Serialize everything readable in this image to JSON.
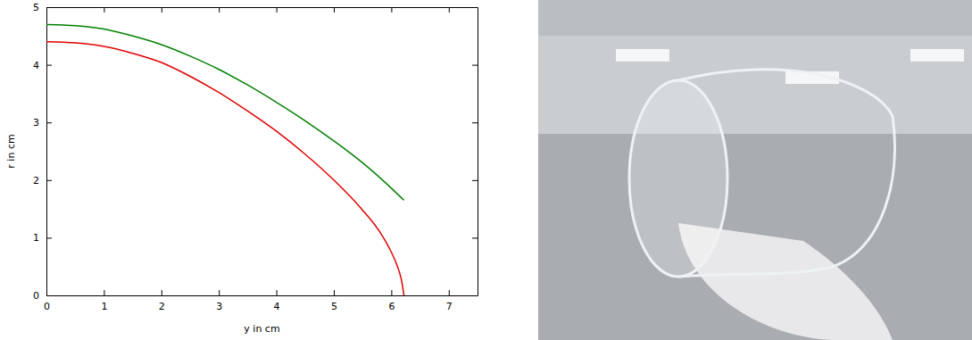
{
  "chart_data": {
    "type": "line",
    "x_label": "y in cm",
    "y_label": "r in cm",
    "xlim": [
      0,
      7.5
    ],
    "xticks": [
      0,
      1,
      2,
      3,
      4,
      5,
      6,
      7
    ],
    "ylim": [
      0,
      5
    ],
    "yticks": [
      0,
      1,
      2,
      3,
      4,
      5
    ],
    "grid": false,
    "series": [
      {
        "color": "#008000",
        "x": [
          0,
          0.5,
          1,
          1.5,
          2,
          2.5,
          3,
          3.5,
          4,
          4.5,
          5,
          5.5,
          6,
          6.22
        ],
        "values": [
          4.7,
          4.68,
          4.62,
          4.5,
          4.35,
          4.15,
          3.92,
          3.65,
          3.35,
          3.03,
          2.68,
          2.3,
          1.86,
          1.65
        ]
      },
      {
        "color": "#e00000",
        "x": [
          0,
          0.5,
          1,
          1.5,
          2,
          2.5,
          3,
          3.5,
          4,
          4.5,
          5,
          5.5,
          5.8,
          6.0,
          6.1,
          6.18,
          6.22
        ],
        "values": [
          4.4,
          4.38,
          4.32,
          4.2,
          4.04,
          3.8,
          3.52,
          3.2,
          2.85,
          2.45,
          2.0,
          1.48,
          1.1,
          0.75,
          0.52,
          0.25,
          0
        ]
      }
    ]
  }
}
